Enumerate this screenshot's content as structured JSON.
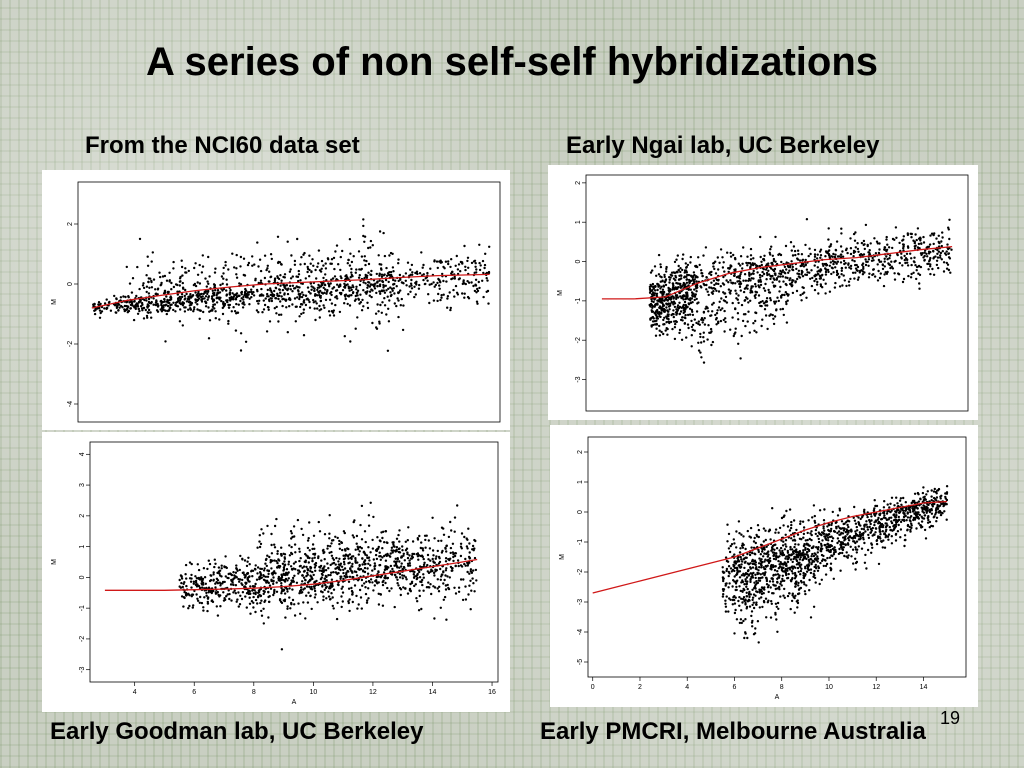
{
  "slide": {
    "title": "A series of non self-self hybridizations",
    "page_number": "19"
  },
  "captions": {
    "top_left": "From the NCI60 data set",
    "top_right": "Early Ngai lab, UC Berkeley",
    "bottom_left": "Early Goodman lab, UC Berkeley",
    "bottom_right": "Early PMCRI, Melbourne Australia"
  },
  "chart_data": [
    {
      "type": "scatter",
      "name": "NCI60",
      "xlabel": "",
      "ylabel": "M",
      "xlim": [
        3.6,
        15.8
      ],
      "ylim": [
        -4.6,
        3.4
      ],
      "xticks": [],
      "yticks": [
        -4,
        -2,
        0,
        2
      ],
      "point_color": "#000000",
      "loess_curve": {
        "color": "#d01818",
        "x": [
          4,
          5,
          6,
          7,
          8,
          9,
          10,
          11,
          12,
          13,
          14,
          15.5
        ],
        "y": [
          -0.8,
          -0.55,
          -0.38,
          -0.22,
          -0.1,
          0,
          0.05,
          0.1,
          0.15,
          0.22,
          0.28,
          0.32
        ]
      },
      "cloud": [
        {
          "x": [
            4,
            15.5
          ],
          "mean": [
            -0.8,
            0.3
          ],
          "sd": [
            0.12,
            0.45
          ],
          "n": 900
        },
        {
          "x": [
            5,
            13
          ],
          "mean": [
            -0.3,
            0.1
          ],
          "sd": [
            0.5,
            0.9
          ],
          "n": 500
        }
      ]
    },
    {
      "type": "scatter",
      "name": "Ngai",
      "xlabel": "",
      "ylabel": "M",
      "xlim": [
        3.5,
        15.5
      ],
      "ylim": [
        -3.8,
        2.2
      ],
      "xticks": [],
      "yticks": [
        -3,
        -2,
        -1,
        0,
        1,
        2
      ],
      "point_color": "#000000",
      "loess_curve": {
        "color": "#d01818",
        "x": [
          4,
          5,
          6,
          7,
          8,
          9,
          10,
          11,
          12,
          13,
          14,
          15
        ],
        "y": [
          -0.95,
          -0.95,
          -0.9,
          -0.55,
          -0.3,
          -0.15,
          -0.05,
          0.05,
          0.1,
          0.2,
          0.3,
          0.38
        ]
      },
      "cloud": [
        {
          "x": [
            5.5,
            7
          ],
          "mean": [
            -1.1,
            -0.7
          ],
          "sd": [
            0.35,
            0.45
          ],
          "n": 500
        },
        {
          "x": [
            7,
            15
          ],
          "mean": [
            -0.5,
            0.3
          ],
          "sd": [
            0.35,
            0.3
          ],
          "n": 800
        },
        {
          "x": [
            7,
            10
          ],
          "mean": [
            -1.8,
            -0.6
          ],
          "sd": [
            0.5,
            0.4
          ],
          "n": 180
        }
      ]
    },
    {
      "type": "scatter",
      "name": "Goodman",
      "xlabel": "A",
      "ylabel": "M",
      "xlim": [
        2.5,
        16.2
      ],
      "ylim": [
        -3.4,
        4.4
      ],
      "xticks": [
        4,
        6,
        8,
        10,
        12,
        14,
        16
      ],
      "yticks": [
        -3,
        -2,
        -1,
        0,
        1,
        2,
        3,
        4
      ],
      "point_color": "#000000",
      "loess_curve": {
        "color": "#d01818",
        "x": [
          3,
          4,
          5,
          6,
          7,
          8,
          9,
          10,
          11,
          12,
          13,
          14,
          15,
          15.5
        ],
        "y": [
          -0.42,
          -0.42,
          -0.42,
          -0.4,
          -0.38,
          -0.35,
          -0.3,
          -0.22,
          -0.1,
          0.05,
          0.2,
          0.35,
          0.5,
          0.58
        ]
      },
      "cloud": [
        {
          "x": [
            5.5,
            15.5
          ],
          "mean": [
            -0.4,
            0.5
          ],
          "sd": [
            0.35,
            0.6
          ],
          "n": 1100
        },
        {
          "x": [
            8,
            13
          ],
          "mean": [
            0.2,
            0.6
          ],
          "sd": [
            0.8,
            0.6
          ],
          "n": 300
        }
      ]
    },
    {
      "type": "scatter",
      "name": "PMCRI",
      "xlabel": "A",
      "ylabel": "M",
      "xlim": [
        -0.2,
        15.8
      ],
      "ylim": [
        -5.5,
        2.5
      ],
      "xticks": [
        0,
        2,
        4,
        6,
        8,
        10,
        12,
        14
      ],
      "yticks": [
        -5,
        -4,
        -3,
        -2,
        -1,
        0,
        1,
        2
      ],
      "point_color": "#000000",
      "loess_curve": {
        "color": "#d01818",
        "x": [
          0,
          1,
          2,
          3,
          4,
          5,
          6,
          7,
          8,
          9,
          10,
          11,
          12,
          13,
          14,
          15
        ],
        "y": [
          -2.7,
          -2.5,
          -2.3,
          -2.1,
          -1.9,
          -1.7,
          -1.5,
          -1.2,
          -0.9,
          -0.6,
          -0.35,
          -0.15,
          0,
          0.15,
          0.3,
          0.35
        ]
      },
      "cloud": [
        {
          "x": [
            5.5,
            15
          ],
          "mean": [
            -2.2,
            0.3
          ],
          "sd": [
            0.7,
            0.25
          ],
          "n": 1200
        },
        {
          "x": [
            6,
            9.5
          ],
          "mean": [
            -2.8,
            -1.6
          ],
          "sd": [
            0.8,
            0.6
          ],
          "n": 300
        }
      ]
    }
  ]
}
